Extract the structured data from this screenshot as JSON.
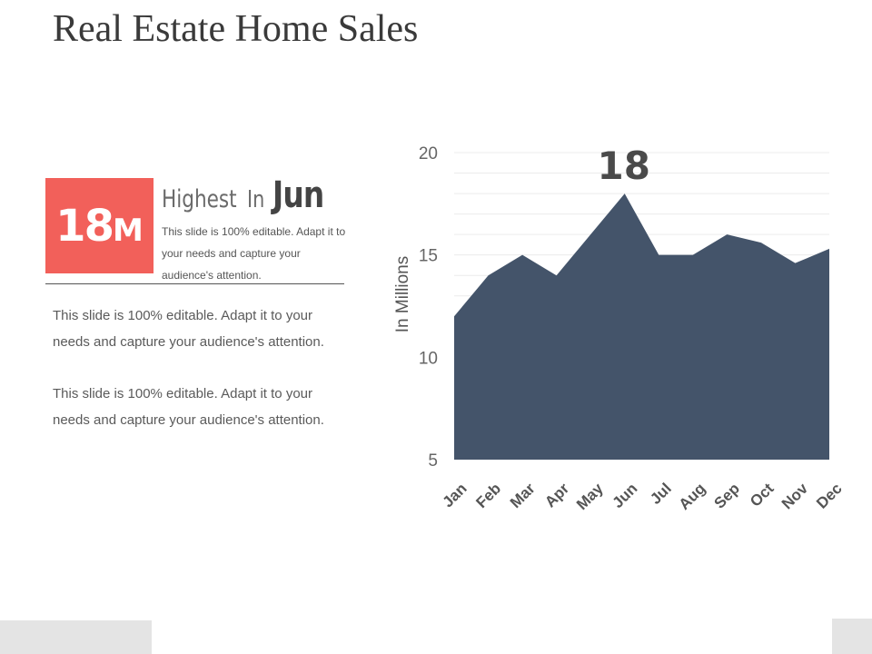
{
  "title": "Real Estate Home Sales",
  "kpi": {
    "value": "18",
    "unit": "M",
    "headline_prefix": "Highest",
    "headline_in": "In",
    "headline_month": "Jun",
    "description": "This slide is 100% editable. Adapt it to your needs and capture your audience's attention."
  },
  "paragraphs": [
    "This slide is 100% editable. Adapt it to your needs and capture your audience's attention.",
    "This slide is 100% editable. Adapt it to your needs and capture your audience's attention."
  ],
  "colors": {
    "accent": "#f2605a",
    "area": "#44546a",
    "text": "#5a5a5a"
  },
  "chart_data": {
    "type": "area",
    "categories": [
      "Jan",
      "Feb",
      "Mar",
      "Apr",
      "May",
      "Jun",
      "Jul",
      "Aug",
      "Sep",
      "Oct",
      "Nov",
      "Dec"
    ],
    "values": [
      12,
      14,
      15,
      14,
      16,
      18,
      15,
      15,
      16,
      15.6,
      14.6,
      15.3
    ],
    "ylabel": "In Millions",
    "ylim": [
      5,
      20
    ],
    "yticks": [
      5,
      10,
      15,
      20
    ],
    "peak_label": "18",
    "grid": true,
    "legend": "none"
  }
}
